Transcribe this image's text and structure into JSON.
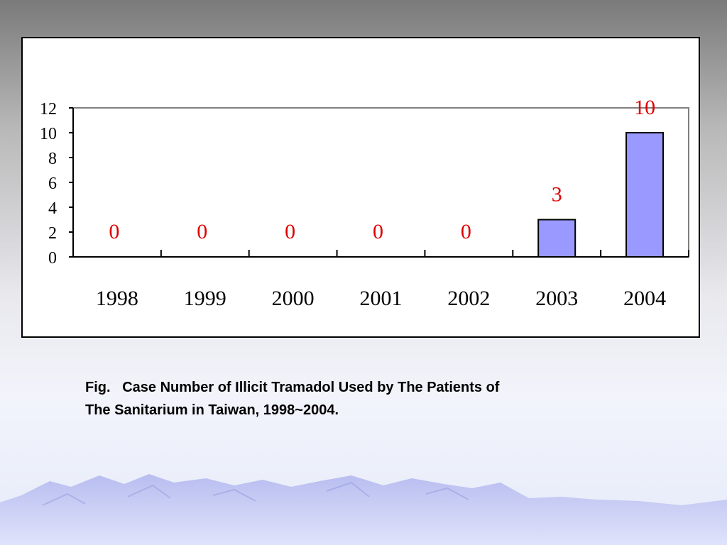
{
  "caption": {
    "line1": "Fig.   Case Number of Illicit Tramadol Used by The Patients of",
    "line2": "The Sanitarium in Taiwan, 1998~2004."
  },
  "colors": {
    "bar_fill": "#9999ff",
    "data_label": "#e00000",
    "axis": "#000000",
    "plot_border": "#808080"
  },
  "chart_data": {
    "type": "bar",
    "categories": [
      "1998",
      "1999",
      "2000",
      "2001",
      "2002",
      "2003",
      "2004"
    ],
    "values": [
      0,
      0,
      0,
      0,
      0,
      3,
      10
    ],
    "data_labels": [
      "0",
      "0",
      "0",
      "0",
      "0",
      "3",
      "10"
    ],
    "title": "",
    "xlabel": "",
    "ylabel": "",
    "ylim": [
      0,
      12
    ],
    "yticks": [
      "0",
      "2",
      "4",
      "6",
      "8",
      "10",
      "12"
    ],
    "grid": false,
    "legend": "none"
  }
}
